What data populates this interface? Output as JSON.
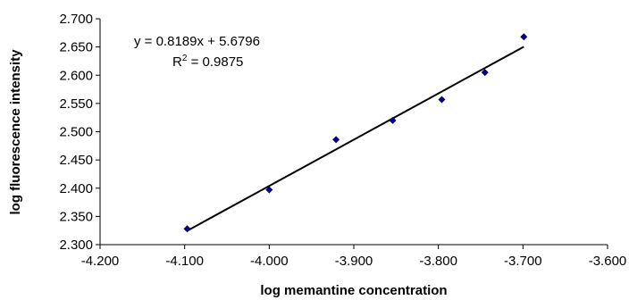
{
  "chart_data": {
    "type": "scatter",
    "title": "",
    "xlabel": "log  memantine concentration",
    "ylabel": "log fluorescence intensity",
    "xlim": [
      -4.2,
      -3.6
    ],
    "ylim": [
      2.3,
      2.7
    ],
    "x_ticks": [
      "-4.200",
      "-4.100",
      "-4.000",
      "-3.900",
      "-3.800",
      "-3.700",
      "-3.600"
    ],
    "y_ticks": [
      "2.300",
      "2.350",
      "2.400",
      "2.450",
      "2.500",
      "2.550",
      "2.600",
      "2.650",
      "2.700"
    ],
    "grid": false,
    "legend": "none",
    "points": [
      {
        "x": -4.097,
        "y": 2.328
      },
      {
        "x": -4.0,
        "y": 2.397
      },
      {
        "x": -3.921,
        "y": 2.486
      },
      {
        "x": -3.854,
        "y": 2.52
      },
      {
        "x": -3.796,
        "y": 2.557
      },
      {
        "x": -3.745,
        "y": 2.605
      },
      {
        "x": -3.699,
        "y": 2.668
      }
    ],
    "trendline": {
      "slope": 0.8189,
      "intercept": 5.6796,
      "x_range": [
        -4.097,
        -3.699
      ],
      "equation": "y = 0.8189x + 5.6796",
      "r2_prefix": "R",
      "r2_sup": "2",
      "r2_value": " = 0.9875"
    },
    "marker_color": "#000080",
    "line_color": "#000000"
  }
}
